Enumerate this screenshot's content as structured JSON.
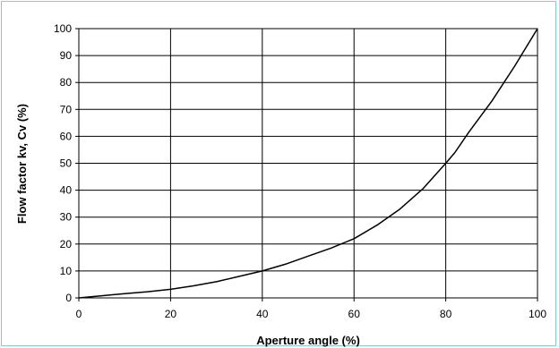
{
  "chart_data": {
    "type": "line",
    "title": "",
    "xlabel": "Aperture angle (%)",
    "ylabel": "Flow factor kv, Cv (%)",
    "xlim": [
      0,
      100
    ],
    "ylim": [
      0,
      100
    ],
    "x_ticks": [
      0,
      20,
      40,
      60,
      80,
      100
    ],
    "y_ticks": [
      0,
      10,
      20,
      30,
      40,
      50,
      60,
      70,
      80,
      90,
      100
    ],
    "grid": true,
    "legend": "none",
    "colors": {
      "line": "#000000",
      "grid": "#000000",
      "frame": "#7fd0cc"
    },
    "series": [
      {
        "x": [
          0,
          5,
          10,
          15,
          20,
          25,
          30,
          35,
          40,
          45,
          50,
          55,
          60,
          65,
          70,
          75,
          80,
          82,
          85,
          90,
          95,
          100
        ],
        "y": [
          0,
          0.8,
          1.6,
          2.3,
          3.2,
          4.5,
          6.0,
          8.0,
          10.0,
          12.5,
          15.5,
          18.5,
          22.0,
          27.0,
          33.0,
          40.5,
          50.0,
          54.0,
          61.5,
          73.0,
          86.0,
          100.0
        ]
      }
    ]
  }
}
